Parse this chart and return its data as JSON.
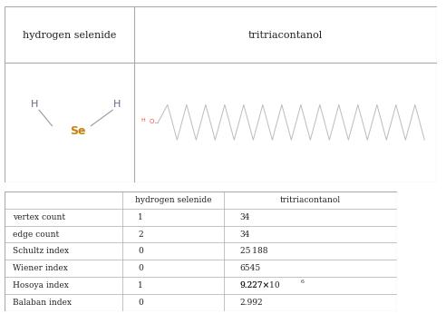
{
  "top_table": {
    "col1_header": "hydrogen selenide",
    "col2_header": "tritriacontanol",
    "background": "#ffffff",
    "border_color": "#aaaaaa",
    "header_font_color": "#222222"
  },
  "bottom_table": {
    "col_headers": [
      "",
      "hydrogen selenide",
      "tritriacontanol"
    ],
    "rows": [
      [
        "vertex count",
        "1",
        "34"
      ],
      [
        "edge count",
        "2",
        "34"
      ],
      [
        "Schultz index",
        "0",
        "25 188"
      ],
      [
        "Wiener index",
        "0",
        "6545"
      ],
      [
        "Hosoya index",
        "1",
        "9.227×10⁶"
      ],
      [
        "Balaban index",
        "0",
        "2.992"
      ]
    ],
    "background": "#ffffff",
    "border_color": "#aaaaaa",
    "font_color": "#222222"
  },
  "molecule1": {
    "Se_color": "#c8820a",
    "H_color": "#555577",
    "bond_color": "#888888"
  },
  "molecule2": {
    "chain_color": "#aaaaaa",
    "O_color": "#ff4444",
    "H_color": "#ff4444"
  }
}
